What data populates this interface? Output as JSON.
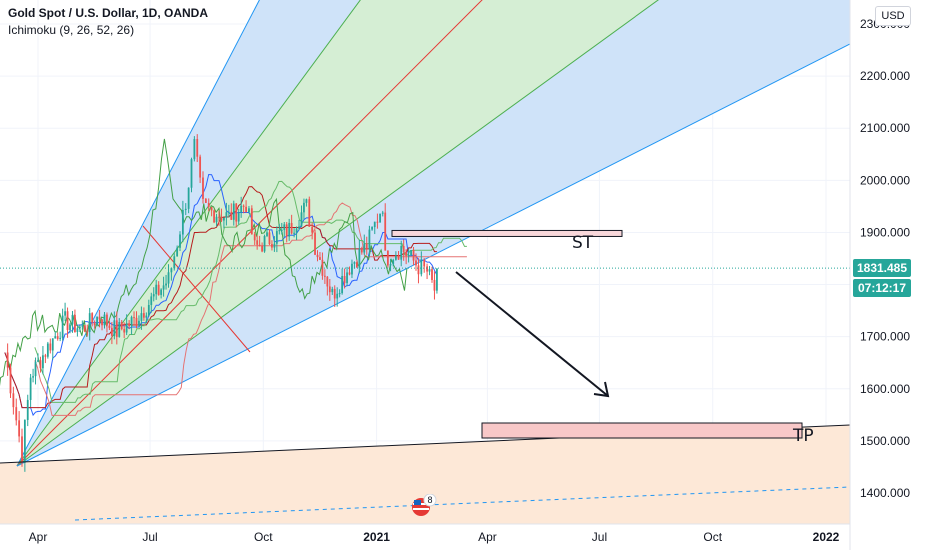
{
  "header": {
    "title": "Gold Spot / U.S. Dollar, 1D, OANDA",
    "indicator": "Ichimoku (9, 26, 52, 26)"
  },
  "currency_button": "USD",
  "last_price": "1831.485",
  "countdown": "07:12:17",
  "event_badge": "8",
  "colors": {
    "background": "#ffffff",
    "fan_blue_fill": "#cfe3f9",
    "fan_green_fill": "#d5eed4",
    "fan_blue_line": "#2196f3",
    "fan_green_line": "#4caf50",
    "fan_red_line": "#e53935",
    "tp_zone_fill": "#fde8d7",
    "price_badge": "#26a69a",
    "countdown_badge": "#26a69a",
    "st_box_fill": "#f8d7da",
    "tp_box_fill": "#f8c8c8"
  },
  "chart_data": {
    "type": "candlestick",
    "symbol": "Gold Spot / U.S. Dollar",
    "interval": "1D",
    "exchange": "OANDA",
    "indicators": [
      "Ichimoku (9, 26, 52, 26)"
    ],
    "y_axis": {
      "ticks": [
        1400,
        1500,
        1600,
        1700,
        1800,
        1900,
        2000,
        2100,
        2200,
        2300
      ],
      "tick_labels": [
        "1400.000",
        "1500.000",
        "1600.000",
        "1700.000",
        "1800.000",
        "1900.000",
        "2000.000",
        "2100.000",
        "2200.000",
        "2300.000"
      ],
      "range": [
        1340,
        2350
      ]
    },
    "x_axis": {
      "tick_labels": [
        "Apr",
        "Jul",
        "Oct",
        "2021",
        "Apr",
        "Jul",
        "Oct",
        "2022"
      ]
    },
    "last_price": 1831.485,
    "close_path": [
      [
        "2020-03-05",
        1670
      ],
      [
        "2020-03-12",
        1575
      ],
      [
        "2020-03-19",
        1475
      ],
      [
        "2020-03-26",
        1625
      ],
      [
        "2020-04-09",
        1680
      ],
      [
        "2020-04-23",
        1730
      ],
      [
        "2020-05-07",
        1715
      ],
      [
        "2020-05-21",
        1740
      ],
      [
        "2020-06-04",
        1710
      ],
      [
        "2020-06-18",
        1730
      ],
      [
        "2020-07-02",
        1770
      ],
      [
        "2020-07-16",
        1810
      ],
      [
        "2020-07-23",
        1880
      ],
      [
        "2020-07-30",
        1960
      ],
      [
        "2020-08-06",
        2065
      ],
      [
        "2020-08-13",
        1950
      ],
      [
        "2020-08-20",
        1940
      ],
      [
        "2020-09-03",
        1930
      ],
      [
        "2020-09-17",
        1955
      ],
      [
        "2020-09-24",
        1870
      ],
      [
        "2020-10-08",
        1890
      ],
      [
        "2020-10-22",
        1905
      ],
      [
        "2020-11-05",
        1950
      ],
      [
        "2020-11-12",
        1875
      ],
      [
        "2020-11-26",
        1780
      ],
      [
        "2020-12-10",
        1835
      ],
      [
        "2020-12-24",
        1875
      ],
      [
        "2021-01-06",
        1955
      ],
      [
        "2021-01-08",
        1850
      ],
      [
        "2021-01-21",
        1870
      ],
      [
        "2021-02-04",
        1835
      ],
      [
        "2021-02-11",
        1825
      ],
      [
        "2021-02-17",
        1790
      ],
      [
        "2021-02-19",
        1831
      ]
    ],
    "drawings": {
      "st_label": "ST",
      "tp_label": "TP",
      "stop_zone": {
        "from": "2021-01-10",
        "to": "2021-07-15",
        "low": 1890,
        "high": 1900
      },
      "target_zone": {
        "from": "2021-04-01",
        "to": "2021-12-25",
        "low": 1515,
        "high": 1535
      },
      "projection_arrow": {
        "from": [
          "2021-02-28",
          1830
        ],
        "to": [
          "2021-07-05",
          1585
        ]
      }
    }
  }
}
